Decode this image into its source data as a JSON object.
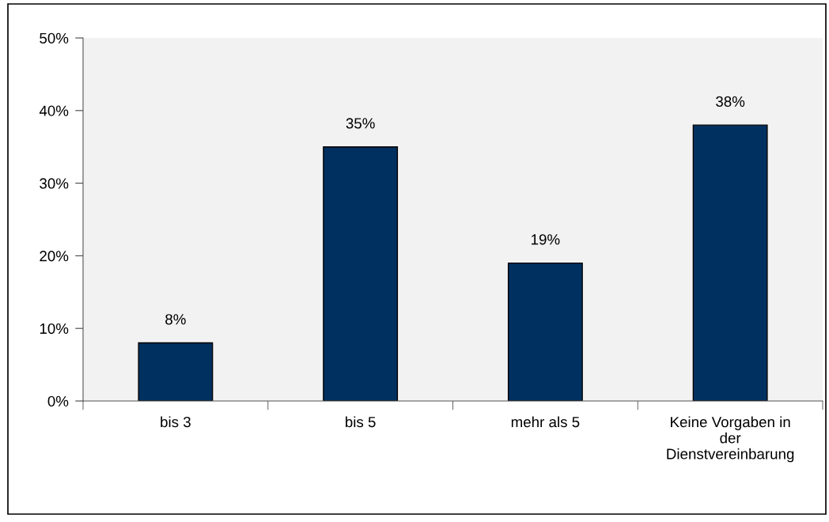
{
  "chart_data": {
    "type": "bar",
    "categories": [
      "bis 3",
      "bis 5",
      "mehr als 5",
      "Keine Vorgaben in\nder\nDienstvereinbarung"
    ],
    "values": [
      8,
      35,
      19,
      38
    ],
    "value_labels": [
      "8%",
      "35%",
      "19%",
      "38%"
    ],
    "color": "#003060",
    "ylim": [
      0,
      50
    ],
    "yticks": [
      {
        "value": 0,
        "label": "0%"
      },
      {
        "value": 10,
        "label": "10%"
      },
      {
        "value": 20,
        "label": "20%"
      },
      {
        "value": 30,
        "label": "30%"
      },
      {
        "value": 40,
        "label": "40%"
      },
      {
        "value": 50,
        "label": "50%"
      }
    ]
  }
}
